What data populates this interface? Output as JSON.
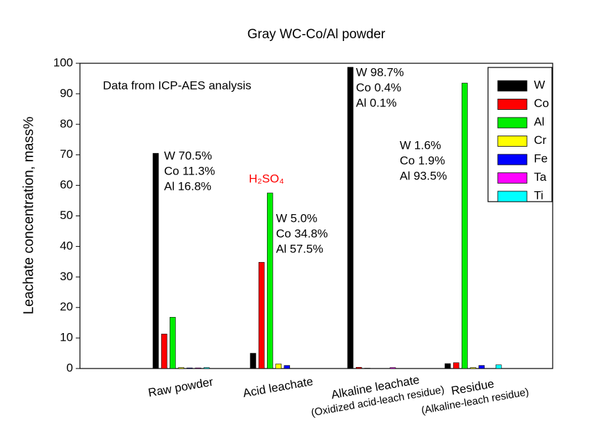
{
  "chart_data": {
    "type": "bar",
    "title": "Gray WC-Co/Al powder",
    "y_label": "Leachate concentration, mass%",
    "categories": [
      "Raw powder",
      "Acid leachate",
      "Alkaline leachate",
      "Residue"
    ],
    "category_notes": [
      null,
      null,
      "(Oxidized acid-leach residue)",
      "(Alkaline-leach residue)"
    ],
    "series": [
      {
        "name": "W",
        "color": "#000000",
        "values": [
          70.5,
          5.0,
          98.7,
          1.6
        ]
      },
      {
        "name": "Co",
        "color": "#ff0000",
        "values": [
          11.3,
          34.8,
          0.4,
          1.9
        ]
      },
      {
        "name": "Al",
        "color": "#00ee00",
        "values": [
          16.8,
          57.5,
          0.1,
          93.5
        ]
      },
      {
        "name": "Cr",
        "color": "#ffff00",
        "values": [
          0.3,
          1.5,
          0,
          0.3
        ]
      },
      {
        "name": "Fe",
        "color": "#0000ff",
        "values": [
          0.2,
          1.0,
          0,
          1.0
        ]
      },
      {
        "name": "Ta",
        "color": "#ff00ff",
        "values": [
          0.2,
          0,
          0.3,
          0
        ]
      },
      {
        "name": "Ti",
        "color": "#00ffff",
        "values": [
          0.3,
          0,
          0,
          1.2
        ]
      }
    ],
    "ylim": [
      0,
      100
    ],
    "yticks": [
      0,
      10,
      20,
      30,
      40,
      50,
      60,
      70,
      80,
      90,
      100
    ],
    "legend": "upper right",
    "annotations": [
      {
        "lines": [
          "Data from ICP-AES analysis"
        ]
      },
      {
        "lines": [
          "W 70.5%",
          "Co 11.3%",
          "Al 16.8%"
        ]
      },
      {
        "lines": [
          "H₂SO₄"
        ],
        "color": "#ff0000"
      },
      {
        "lines": [
          "W 5.0%",
          "Co 34.8%",
          "Al 57.5%"
        ]
      },
      {
        "lines": [
          "W 98.7%",
          "Co 0.4%",
          "Al 0.1%"
        ]
      },
      {
        "lines": [
          "W 1.6%",
          "Co 1.9%",
          "Al 93.5%"
        ]
      }
    ]
  }
}
